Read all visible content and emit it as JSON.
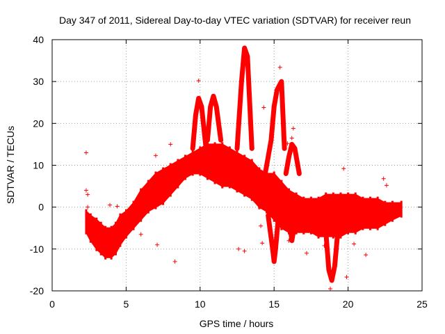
{
  "chart_data": {
    "type": "scatter",
    "title": "Day 347 of 2011, Sidereal Day-to-day VTEC variation (SDTVAR) for receiver reun",
    "xlabel": "GPS time / hours",
    "ylabel": "SDTVAR / TECUs",
    "xlim": [
      0,
      25
    ],
    "ylim": [
      -20,
      40
    ],
    "xticks": [
      0,
      5,
      10,
      15,
      20,
      25
    ],
    "yticks": [
      -20,
      -10,
      0,
      10,
      20,
      30,
      40
    ],
    "xtick_labels": [
      "0",
      "5",
      "10",
      "15",
      "20",
      "25"
    ],
    "ytick_labels": [
      "-20",
      "-10",
      "0",
      "10",
      "20",
      "30",
      "40"
    ],
    "grid": true,
    "marker": "+",
    "color": "#ff0000",
    "series": [
      {
        "name": "SDTVAR",
        "band": {
          "x": [
            2.3,
            2.6,
            3.0,
            3.3,
            3.6,
            4.0,
            4.3,
            4.6,
            5.0,
            5.5,
            6.0,
            6.5,
            7.0,
            7.5,
            8.0,
            8.5,
            9.0,
            9.5,
            10.0,
            10.5,
            11.0,
            11.5,
            12.0,
            12.5,
            13.0,
            13.5,
            14.0,
            14.5,
            15.0,
            15.5,
            16.0,
            16.5,
            17.0,
            17.5,
            18.0,
            18.5,
            19.0,
            19.5,
            20.0,
            20.5,
            21.0,
            21.5,
            22.0,
            22.5,
            23.0,
            23.6
          ],
          "upper": [
            -1,
            -2,
            -3,
            -4,
            -5,
            -5,
            -4,
            -2,
            -1,
            1,
            4,
            6,
            8,
            9,
            10,
            11,
            12,
            13,
            14,
            15,
            15,
            15,
            14,
            13,
            12,
            11,
            9,
            8,
            8,
            6,
            4,
            3,
            2,
            2,
            2,
            3,
            3,
            3,
            3,
            3,
            2,
            2,
            2,
            1,
            1,
            1
          ],
          "lower": [
            -6,
            -8,
            -10,
            -11,
            -12,
            -12,
            -11,
            -9,
            -7,
            -5,
            -3,
            -1,
            0,
            1,
            3,
            5,
            7,
            8,
            8,
            7,
            6,
            5,
            5,
            4,
            3,
            2,
            0,
            -1,
            -3,
            -5,
            -6,
            -6,
            -6,
            -6,
            -7,
            -7,
            -7,
            -7,
            -6,
            -6,
            -5,
            -5,
            -5,
            -4,
            -3,
            -2
          ]
        },
        "spikes": [
          {
            "x": [
              9.5,
              9.7,
              9.9,
              10.1,
              10.4
            ],
            "y": [
              14,
              22,
              26,
              24,
              14
            ]
          },
          {
            "x": [
              10.5,
              10.7,
              10.9,
              11.1,
              11.4
            ],
            "y": [
              16,
              24,
              26.5,
              24,
              16
            ]
          },
          {
            "x": [
              12.5,
              12.8,
              13.0,
              13.2,
              13.5
            ],
            "y": [
              14,
              30,
              38,
              36,
              14
            ]
          },
          {
            "x": [
              14.4,
              14.8,
              15.0,
              15.2,
              15.5,
              15.7
            ],
            "y": [
              8,
              16,
              24,
              28,
              30,
              14
            ]
          },
          {
            "x": [
              15.8,
              16.0,
              16.2,
              16.4,
              16.7
            ],
            "y": [
              8,
              12,
              15,
              14,
              8
            ]
          }
        ],
        "dips": [
          {
            "x": [
              14.6,
              14.9,
              15.0,
              15.1,
              15.3
            ],
            "y": [
              -2,
              -10,
              -13,
              -10,
              -2
            ]
          },
          {
            "x": [
              16.0,
              16.2,
              16.4
            ],
            "y": [
              -2,
              -8,
              -4
            ]
          },
          {
            "x": [
              18.5,
              18.7,
              18.9,
              19.1,
              19.3
            ],
            "y": [
              -6,
              -15,
              -17.5,
              -14,
              -6
            ]
          }
        ],
        "outliers": {
          "x": [
            2.3,
            2.3,
            2.4,
            2.4,
            9.9,
            8.0,
            14.3,
            15.4,
            16.3,
            16.2,
            15.9,
            17.2,
            19.7,
            19.9,
            22.4,
            22.6,
            21.2,
            18.4,
            18.8,
            13.0,
            14.2,
            14.1,
            12.6,
            8.3,
            7.1,
            6.0,
            5.2,
            3.9,
            4.4,
            7.0,
            7.8,
            16.0,
            20.4,
            21.5,
            23.0
          ],
          "y": [
            13,
            4,
            3,
            0,
            30.2,
            15,
            23.8,
            33.4,
            18.8,
            16.5,
            15.2,
            -11,
            9.2,
            -16.7,
            6.8,
            5.2,
            -11.4,
            -9.2,
            -19.5,
            -10.5,
            -8.6,
            -4.5,
            -10,
            -13,
            -9,
            -6.5,
            -2,
            0.5,
            0.2,
            12.3,
            9,
            -8,
            -8.8,
            -4,
            -2
          ]
        }
      }
    ]
  }
}
